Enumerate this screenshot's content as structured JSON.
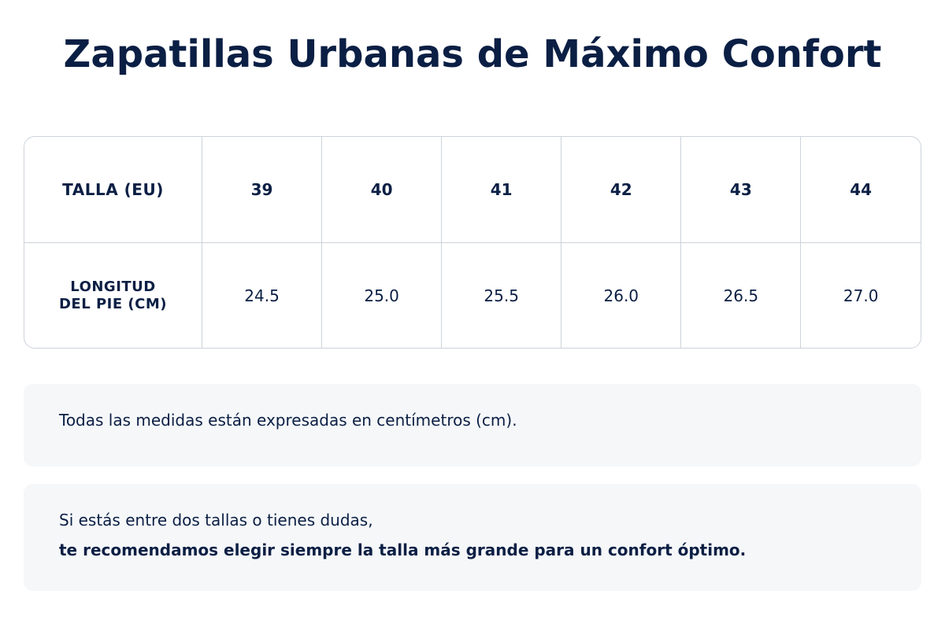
{
  "title": "Zapatillas Urbanas de Máximo Confort",
  "table": {
    "row1_header": "TALLA (EU)",
    "row2_header_line1": "LONGITUD",
    "row2_header_line2": "DEL PIE (CM)",
    "sizes": [
      "39",
      "40",
      "41",
      "42",
      "43",
      "44"
    ],
    "lengths": [
      "24.5",
      "25.0",
      "25.5",
      "26.0",
      "26.5",
      "27.0"
    ]
  },
  "notes": {
    "measurement_note": "Todas las medidas están expresadas en centímetros (cm).",
    "advice_line1": "Si estás entre dos tallas o tienes dudas,",
    "advice_line2": "te recomendamos elegir siempre la talla más grande para un confort óptimo."
  }
}
